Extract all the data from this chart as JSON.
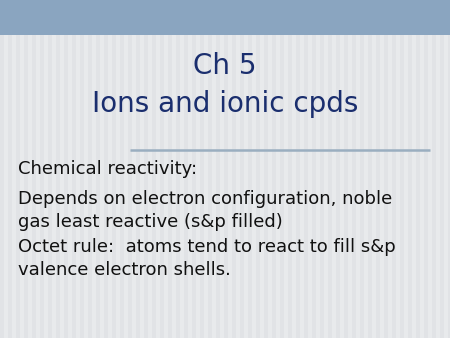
{
  "title_line1": "Ch 5",
  "title_line2": "Ions and ionic cpds",
  "title_color": "#1a2e6e",
  "title_fontsize": 20,
  "header_bg_color": "#8aa5c0",
  "body_bg_color": "#e8eaec",
  "stripe_color": "#dddfe2",
  "separator_color": "#9aaec0",
  "body_lines": [
    "Chemical reactivity:",
    "Depends on electron configuration, noble\ngas least reactive (s&p filled)",
    "Octet rule:  atoms tend to react to fill s&p\nvalence electron shells."
  ],
  "body_fontsize": 13,
  "body_text_color": "#111111",
  "fig_width": 4.5,
  "fig_height": 3.38,
  "dpi": 100
}
